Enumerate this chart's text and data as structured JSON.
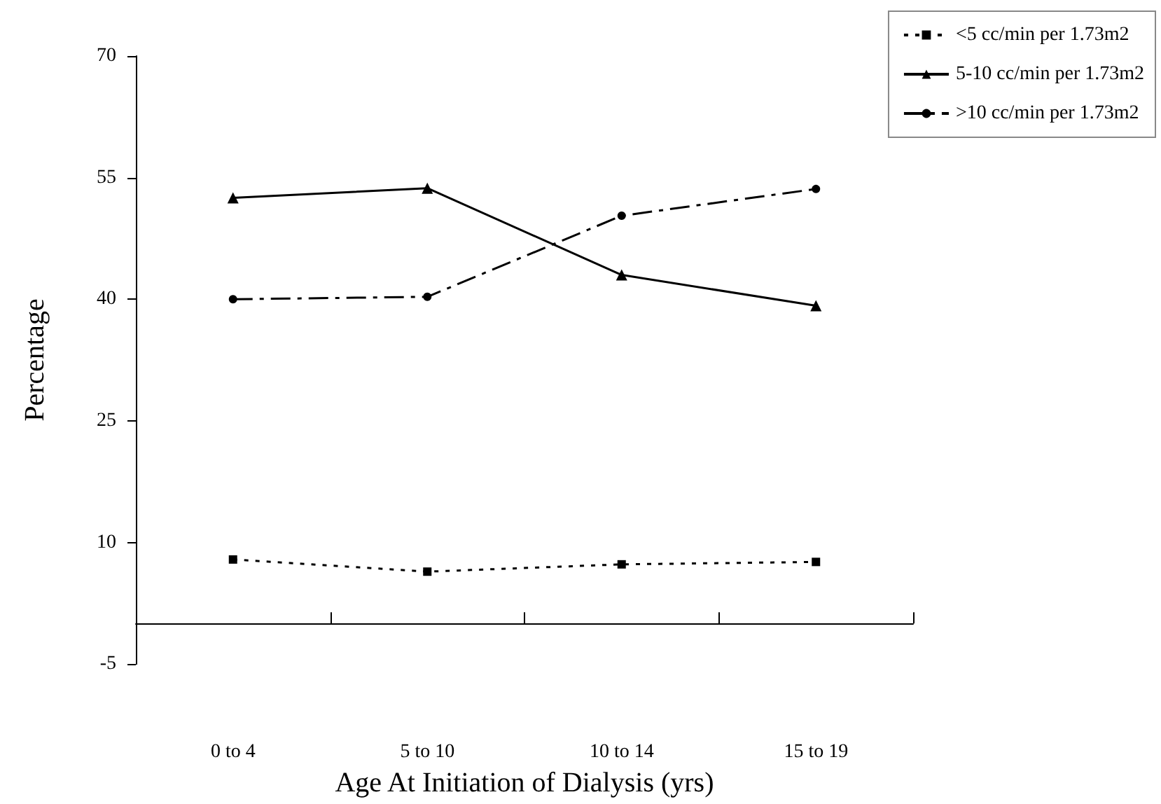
{
  "chart_data": {
    "type": "line",
    "xlabel": "Age At Initiation of Dialysis (yrs)",
    "ylabel": "Percentage",
    "categories": [
      "0 to 4",
      "5 to 10",
      "10 to 14",
      "15 to 19"
    ],
    "series": [
      {
        "name": "<5 cc/min per 1.73m2",
        "color": "#000000",
        "values": [
          7.9,
          6.4,
          7.3,
          7.6
        ],
        "marker": "square",
        "line_style": "dotted"
      },
      {
        "name": "5-10 cc/min per 1.73m2",
        "color": "#000000",
        "values": [
          52.5,
          53.7,
          43.0,
          39.2
        ],
        "marker": "triangle",
        "line_style": "solid"
      },
      {
        "name": ">10 cc/min per 1.73m2",
        "color": "#000000",
        "values": [
          40.0,
          40.3,
          50.3,
          53.6
        ],
        "marker": "circle",
        "line_style": "dashed"
      }
    ],
    "ylim": [
      -5,
      70
    ],
    "yticks": [
      -5,
      10,
      25,
      40,
      55,
      70
    ],
    "grid": false,
    "legend": "top right"
  }
}
